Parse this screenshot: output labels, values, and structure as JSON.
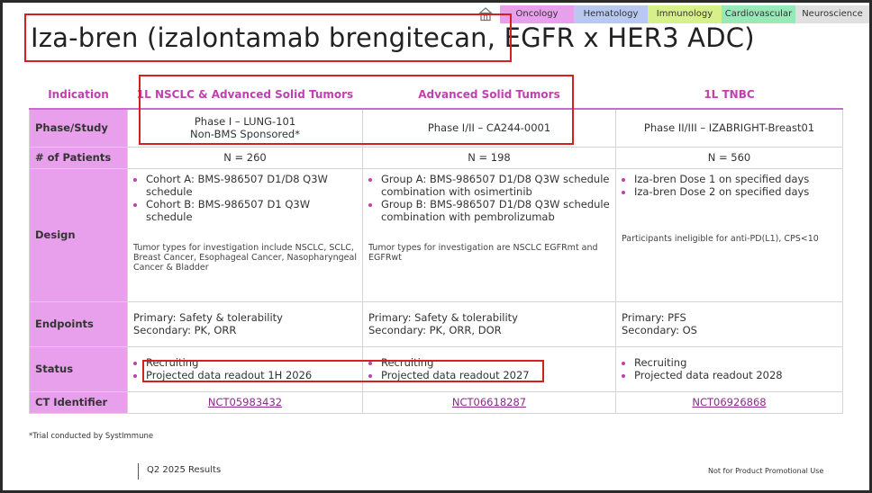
{
  "tabs": [
    {
      "label": "Oncology",
      "color": "#e8a0ec"
    },
    {
      "label": "Hematology",
      "color": "#b8c8f0"
    },
    {
      "label": "Immunology",
      "color": "#d8f08a"
    },
    {
      "label": "Cardiovascular",
      "color": "#98e8b8"
    },
    {
      "label": "Neuroscience",
      "color": "#e0e0e0"
    }
  ],
  "title": "Iza-bren (izalontamab brengitecan, EGFR x HER3 ADC)",
  "table": {
    "headers": [
      "Indication",
      "1L NSCLC & Advanced Solid Tumors",
      "Advanced Solid Tumors",
      "1L TNBC"
    ],
    "phase": {
      "label": "Phase/Study",
      "c1a": "Phase I – LUNG-101",
      "c1b": "Non-BMS Sponsored*",
      "c2": "Phase I/II – CA244-0001",
      "c3": "Phase II/III – IZABRIGHT-Breast01"
    },
    "patients": {
      "label": "# of Patients",
      "c1": "N = 260",
      "c2": "N = 198",
      "c3": "N = 560"
    },
    "design": {
      "label": "Design",
      "c1": [
        "Cohort A: BMS-986507 D1/D8 Q3W schedule",
        "Cohort B: BMS-986507 D1 Q3W schedule"
      ],
      "c1_note": "Tumor types for investigation include NSCLC, SCLC, Breast Cancer, Esophageal Cancer, Nasopharyngeal Cancer & Bladder",
      "c2": [
        "Group A: BMS-986507 D1/D8 Q3W schedule combination with osimertinib",
        "Group B: BMS-986507 D1/D8 Q3W schedule combination with pembrolizumab"
      ],
      "c2_note": "Tumor types for investigation are NSCLC EGFRmt and EGFRwt",
      "c3": [
        "Iza-bren Dose 1 on specified days",
        "Iza-bren Dose 2 on specified days"
      ],
      "c3_note": "Participants ineligible for anti-PD(L1), CPS<10"
    },
    "endpoints": {
      "label": "Endpoints",
      "c1_primary": "Primary: Safety & tolerability",
      "c1_secondary": "Secondary: PK, ORR",
      "c2_primary": "Primary: Safety & tolerability",
      "c2_secondary": "Secondary: PK, ORR, DOR",
      "c3_primary": "Primary: PFS",
      "c3_secondary": "Secondary: OS"
    },
    "status": {
      "label": "Status",
      "c1": [
        "Recruiting",
        "Projected data readout 1H 2026"
      ],
      "c2": [
        "Recruiting",
        "Projected data readout 2027"
      ],
      "c3": [
        "Recruiting",
        "Projected data readout 2028"
      ]
    },
    "ct": {
      "label": "CT Identifier",
      "c1": "NCT05983432",
      "c2": "NCT06618287",
      "c3": "NCT06926868"
    }
  },
  "footnote": "*Trial conducted by SystImmune",
  "footer_left": "Q2 2025 Results",
  "footer_right": "Not for Product Promotional Use"
}
